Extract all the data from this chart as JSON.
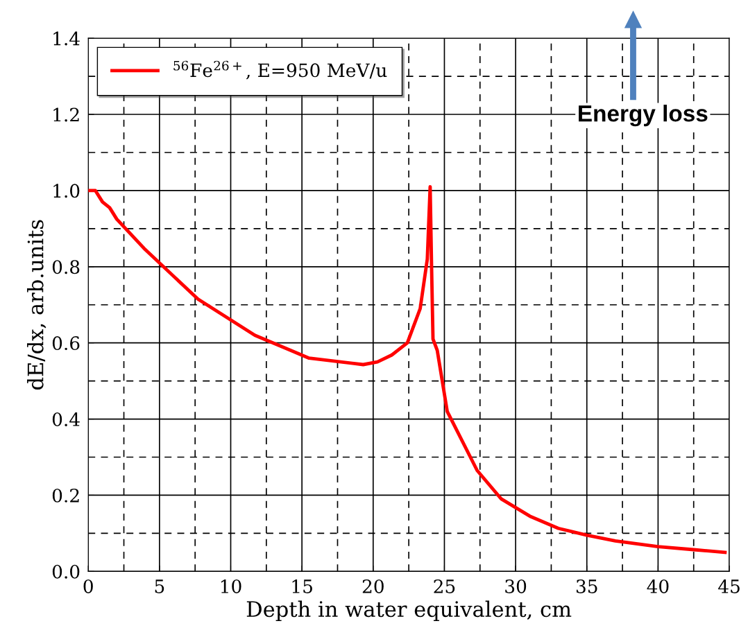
{
  "chart_data": {
    "type": "line",
    "xlabel": "Depth in water equivalent, cm",
    "ylabel": "dE/dx, arb.units",
    "annotations": [
      "Energy loss"
    ],
    "series": [
      {
        "name": "$^{56}$Fe$^{26+}$, E=950 MeV/u",
        "color": "#ff0000",
        "x": [
          0,
          0.5,
          1.0,
          1.5,
          2.0,
          4,
          7.7,
          11.7,
          15.5,
          19.3,
          20.3,
          21.3,
          22.4,
          23.3,
          23.8,
          24.0,
          24.1,
          24.2,
          24.5,
          25.2,
          27.3,
          29,
          31,
          33,
          35,
          37,
          40,
          42.5,
          44.7
        ],
        "values": [
          1.0,
          1.0,
          0.97,
          0.955,
          0.925,
          0.845,
          0.715,
          0.62,
          0.56,
          0.543,
          0.55,
          0.568,
          0.6,
          0.69,
          0.82,
          1.01,
          0.8,
          0.61,
          0.58,
          0.42,
          0.265,
          0.19,
          0.145,
          0.113,
          0.095,
          0.08,
          0.065,
          0.057,
          0.05
        ]
      }
    ],
    "xlim": [
      0,
      45
    ],
    "xticks": [
      0,
      5,
      10,
      15,
      20,
      25,
      30,
      35,
      40,
      45
    ],
    "ylim": [
      0.0,
      1.4
    ],
    "yticks": [
      {
        "value": 0,
        "label": "0.0"
      },
      {
        "value": 0.2,
        "label": "0.2"
      },
      {
        "value": 0.4,
        "label": "0.4"
      },
      {
        "value": 0.6,
        "label": "0.6"
      },
      {
        "value": 0.8,
        "label": "0.8"
      },
      {
        "value": 1.0,
        "label": "1.0"
      },
      {
        "value": 1.2,
        "label": "1.2"
      },
      {
        "value": 1.4,
        "label": "1.4"
      }
    ],
    "grid": true,
    "legend": "top left",
    "line_style": "solid",
    "marker": "none"
  }
}
